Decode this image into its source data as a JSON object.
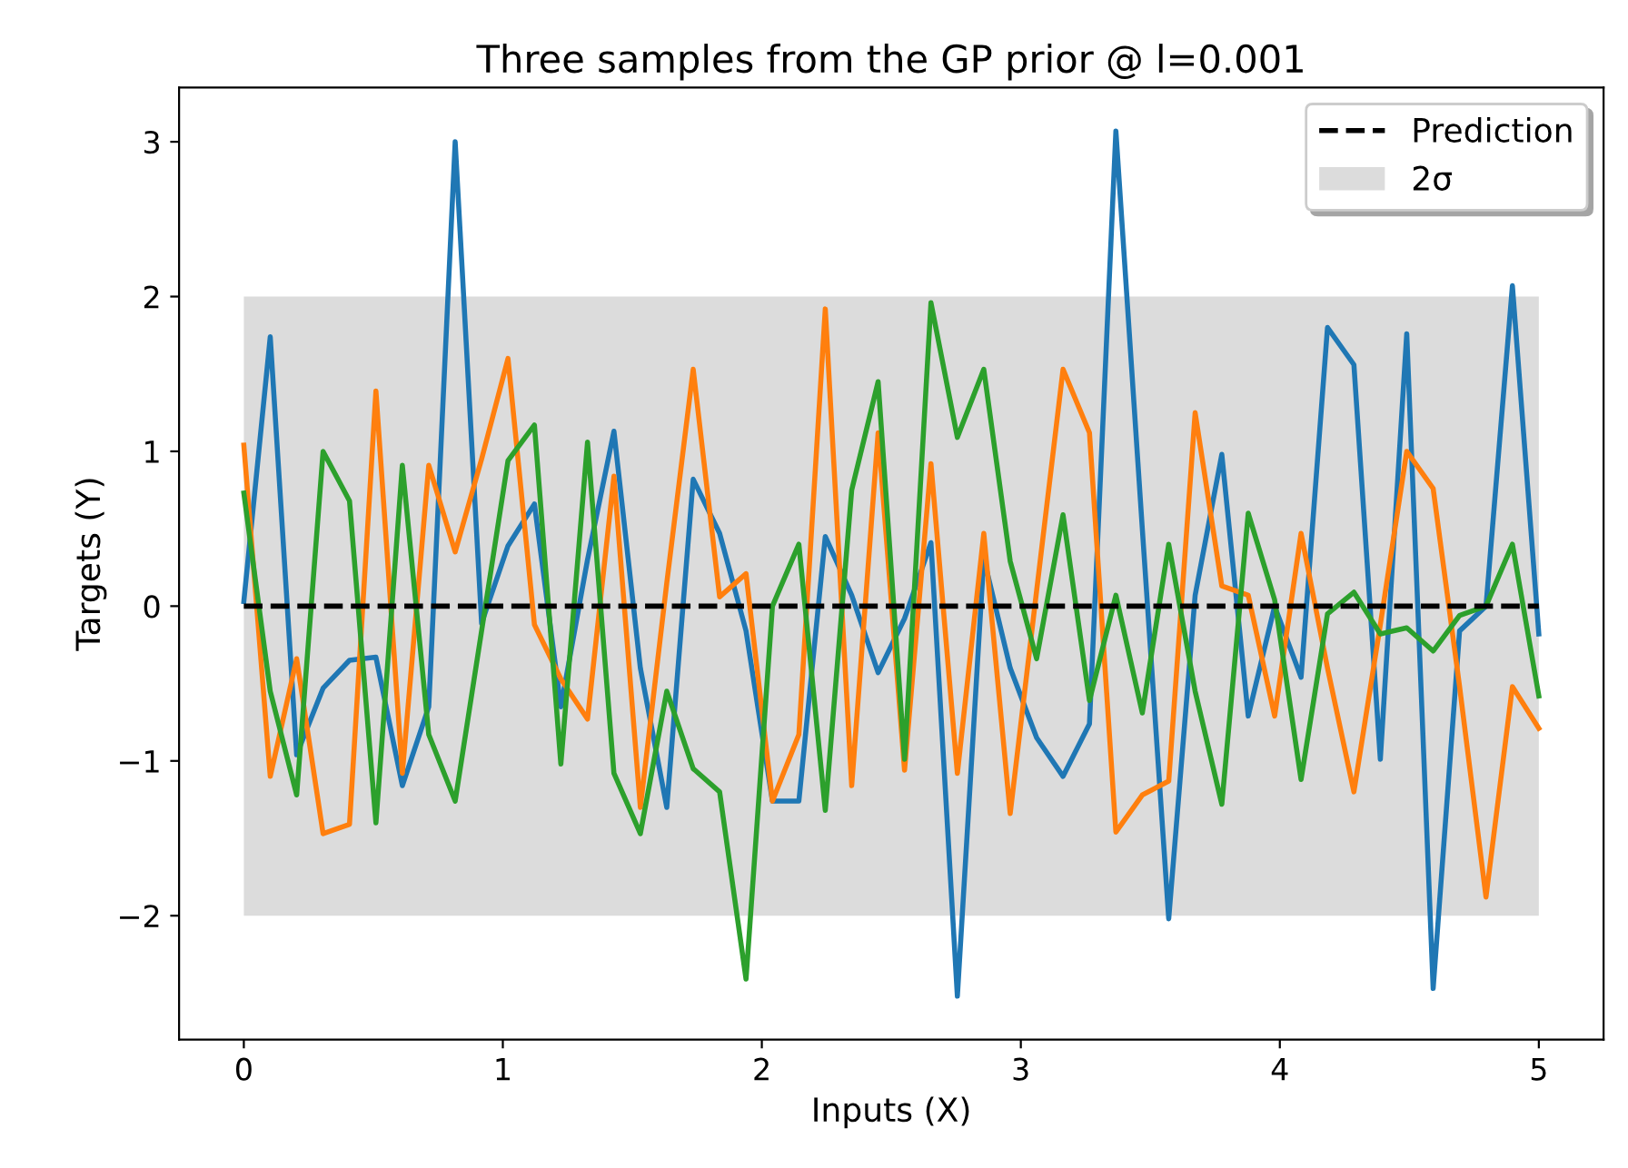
{
  "chart_data": {
    "type": "line",
    "title": "Three samples from the GP prior @ l=0.001",
    "xlabel": "Inputs (X)",
    "ylabel": "Targets (Y)",
    "x": [
      0,
      0.102,
      0.204,
      0.306,
      0.408,
      0.51,
      0.612,
      0.714,
      0.816,
      0.918,
      1.02,
      1.122,
      1.224,
      1.327,
      1.429,
      1.531,
      1.633,
      1.735,
      1.837,
      1.939,
      2.041,
      2.143,
      2.245,
      2.347,
      2.449,
      2.551,
      2.653,
      2.755,
      2.857,
      2.959,
      3.061,
      3.163,
      3.265,
      3.367,
      3.469,
      3.571,
      3.673,
      3.776,
      3.878,
      3.98,
      4.082,
      4.184,
      4.286,
      4.388,
      4.49,
      4.592,
      4.694,
      4.796,
      4.898,
      5
    ],
    "series": [
      {
        "color": "#1f77b4",
        "values": [
          0.03,
          1.74,
          -0.96,
          -0.53,
          -0.35,
          -0.33,
          -1.16,
          -0.65,
          3.0,
          -0.11,
          0.39,
          0.66,
          -0.65,
          0.3,
          1.13,
          -0.4,
          -1.3,
          0.82,
          0.47,
          -0.16,
          -1.26,
          -1.26,
          0.45,
          0.07,
          -0.43,
          -0.08,
          0.41,
          -2.52,
          0.31,
          -0.4,
          -0.85,
          -1.1,
          -0.76,
          3.07,
          0.5,
          -2.02,
          0.07,
          0.98,
          -0.71,
          0,
          -0.46,
          1.8,
          1.56,
          -0.99,
          1.76,
          -2.47,
          -0.16,
          0.0,
          2.07,
          -0.18
        ]
      },
      {
        "color": "#ff7f0e",
        "values": [
          1.04,
          -1.1,
          -0.34,
          -1.47,
          -1.41,
          1.39,
          -1.08,
          0.91,
          0.35,
          0.95,
          1.6,
          -0.12,
          -0.47,
          -0.73,
          0.84,
          -1.3,
          0.15,
          1.53,
          0.06,
          0.21,
          -1.26,
          -0.83,
          1.92,
          -1.16,
          1.12,
          -1.06,
          0.92,
          -1.08,
          0.47,
          -1.34,
          0.1,
          1.53,
          1.12,
          -1.46,
          -1.22,
          -1.13,
          1.25,
          0.13,
          0.07,
          -0.71,
          0.47,
          -0.4,
          -1.2,
          -0.12,
          1.0,
          0.76,
          -0.52,
          -1.88,
          -0.52,
          -0.79
        ]
      },
      {
        "color": "#2ca02c",
        "values": [
          0.73,
          -0.55,
          -1.22,
          1.0,
          0.68,
          -1.4,
          0.91,
          -0.83,
          -1.26,
          -0.16,
          0.94,
          1.17,
          -1.02,
          1.06,
          -1.08,
          -1.47,
          -0.55,
          -1.05,
          -1.2,
          -2.41,
          0.0,
          0.4,
          -1.32,
          0.75,
          1.45,
          -0.99,
          1.96,
          1.09,
          1.53,
          0.29,
          -0.34,
          0.59,
          -0.61,
          0.07,
          -0.69,
          0.4,
          -0.55,
          -1.28,
          0.6,
          0.04,
          -1.12,
          -0.05,
          0.09,
          -0.18,
          -0.14,
          -0.29,
          -0.06,
          0.0,
          0.4,
          -0.58
        ]
      },
      {
        "name": "Prediction",
        "color": "#000000",
        "line_style": "dashed",
        "values": [
          0,
          0,
          0,
          0,
          0,
          0,
          0,
          0,
          0,
          0,
          0,
          0,
          0,
          0,
          0,
          0,
          0,
          0,
          0,
          0,
          0,
          0,
          0,
          0,
          0,
          0,
          0,
          0,
          0,
          0,
          0,
          0,
          0,
          0,
          0,
          0,
          0,
          0,
          0,
          0,
          0,
          0,
          0,
          0,
          0,
          0,
          0,
          0,
          0,
          0
        ]
      }
    ],
    "bands": [
      {
        "axis": "y",
        "from": -2,
        "to": 2,
        "label": "2σ",
        "color": "#dcdcdc"
      }
    ],
    "xlim": [
      -0.25,
      5.25
    ],
    "ylim": [
      -2.8,
      3.35
    ],
    "xticks": [
      0,
      1,
      2,
      3,
      4,
      5
    ],
    "yticks": [
      {
        "value": -2,
        "label": "−2"
      },
      {
        "value": -1,
        "label": "−1"
      },
      0,
      1,
      2,
      3
    ],
    "legend": "top right",
    "grid": false
  }
}
